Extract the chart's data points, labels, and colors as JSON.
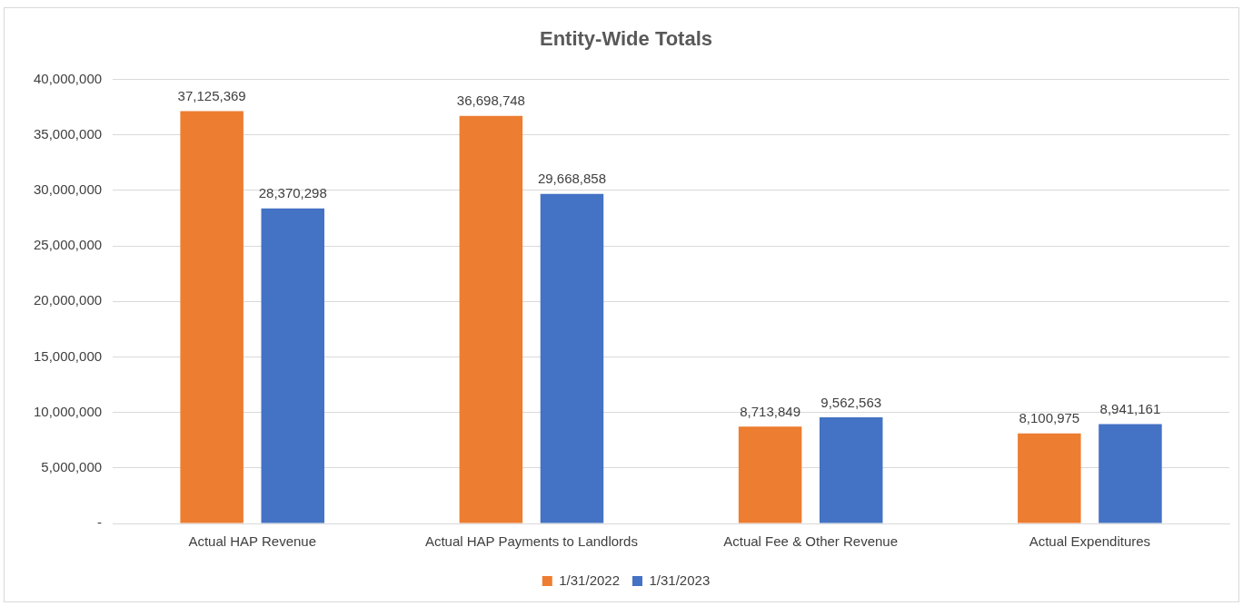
{
  "chart_data": {
    "type": "bar",
    "title": "Entity-Wide Totals",
    "categories": [
      "Actual HAP Revenue",
      "Actual HAP Payments to Landlords",
      "Actual Fee & Other Revenue",
      "Actual Expenditures"
    ],
    "series": [
      {
        "name": "1/31/2022",
        "color": "#ed7d31",
        "values": [
          37125369,
          36698748,
          8713849,
          8100975
        ],
        "value_labels": [
          "37,125,369",
          "36,698,748",
          "8,713,849",
          "8,100,975"
        ]
      },
      {
        "name": "1/31/2023",
        "color": "#4472c4",
        "values": [
          28370298,
          29668858,
          9562563,
          8941161
        ],
        "value_labels": [
          "28,370,298",
          "29,668,858",
          "9,562,563",
          "8,941,161"
        ]
      }
    ],
    "ylim": [
      0,
      40000000
    ],
    "yticks": [
      {
        "value": 0,
        "label": "-"
      },
      {
        "value": 5000000,
        "label": "5,000,000"
      },
      {
        "value": 10000000,
        "label": "10,000,000"
      },
      {
        "value": 15000000,
        "label": "15,000,000"
      },
      {
        "value": 20000000,
        "label": "20,000,000"
      },
      {
        "value": 25000000,
        "label": "25,000,000"
      },
      {
        "value": 30000000,
        "label": "30,000,000"
      },
      {
        "value": 35000000,
        "label": "35,000,000"
      },
      {
        "value": 40000000,
        "label": "40,000,000"
      }
    ],
    "grid": "y",
    "legend": "bottom"
  }
}
